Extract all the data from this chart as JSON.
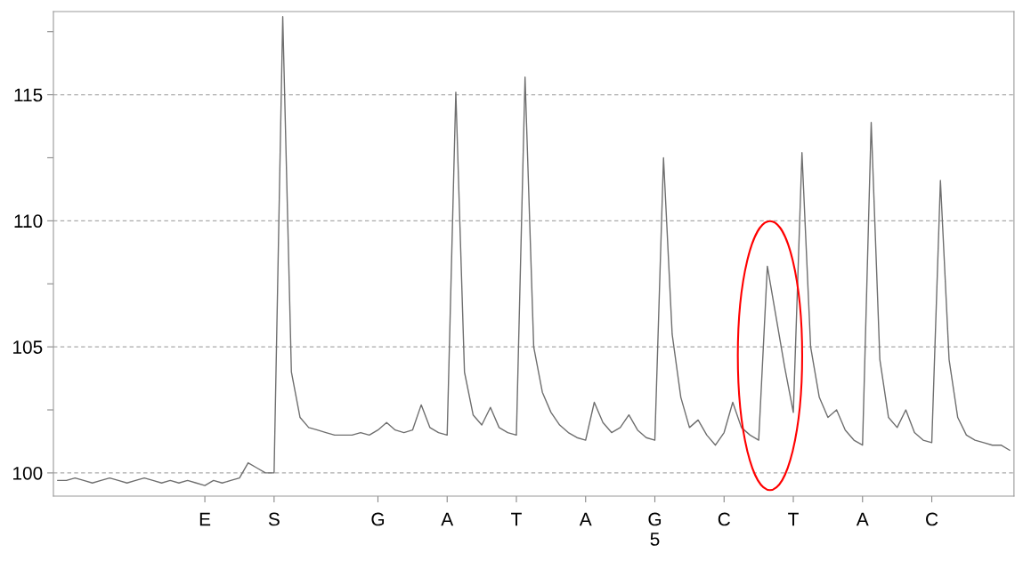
{
  "chart_data": {
    "type": "line",
    "categories": [
      null,
      null,
      null,
      null,
      null,
      null,
      null,
      null,
      null,
      null,
      null,
      null,
      null,
      null,
      null,
      null,
      null,
      "E",
      null,
      null,
      null,
      null,
      null,
      null,
      null,
      "S",
      null,
      null,
      null,
      null,
      null,
      null,
      null,
      null,
      null,
      null,
      null,
      "G",
      null,
      null,
      null,
      null,
      null,
      null,
      null,
      "A",
      null,
      null,
      null,
      null,
      null,
      null,
      null,
      "T",
      null,
      null,
      null,
      null,
      null,
      null,
      null,
      "A",
      null,
      null,
      null,
      null,
      null,
      null,
      null,
      "G\n5",
      null,
      null,
      null,
      null,
      null,
      null,
      null,
      "C",
      null,
      null,
      null,
      null,
      null,
      null,
      null,
      "T",
      null,
      null,
      null,
      null,
      null,
      null,
      null,
      "A",
      null,
      null,
      null,
      null,
      null,
      null,
      null,
      "C",
      null,
      null,
      null,
      null,
      null,
      null,
      null,
      null,
      null
    ],
    "series": [
      {
        "color": "#6e6e6e",
        "values": [
          99.7,
          99.7,
          99.8,
          99.7,
          99.6,
          99.7,
          99.8,
          99.7,
          99.6,
          99.7,
          99.8,
          99.7,
          99.6,
          99.7,
          99.6,
          99.7,
          99.6,
          99.5,
          99.7,
          99.6,
          99.7,
          99.8,
          100.4,
          100.2,
          100.0,
          100.0,
          118.1,
          104,
          102.2,
          101.8,
          101.7,
          101.6,
          101.5,
          101.5,
          101.5,
          101.6,
          101.5,
          101.7,
          102.0,
          101.7,
          101.6,
          101.7,
          102.7,
          101.8,
          101.6,
          101.5,
          115.1,
          104,
          102.3,
          101.9,
          102.6,
          101.8,
          101.6,
          101.5,
          115.7,
          105,
          103.2,
          102.4,
          101.9,
          101.6,
          101.4,
          101.3,
          102.8,
          102.0,
          101.6,
          101.8,
          102.3,
          101.7,
          101.4,
          101.3,
          112.5,
          105.5,
          103,
          101.8,
          102.1,
          101.5,
          101.1,
          101.6,
          102.8,
          101.8,
          101.5,
          101.3,
          108.2,
          106.2,
          104.2,
          102.4,
          112.7,
          105,
          103,
          102.2,
          102.5,
          101.7,
          101.3,
          101.1,
          113.9,
          104.5,
          102.2,
          101.8,
          102.5,
          101.6,
          101.3,
          101.2,
          111.6,
          104.5,
          102.2,
          101.5,
          101.3,
          101.2,
          101.1,
          101.1,
          100.9
        ]
      }
    ],
    "ylim": [
      99.08,
      118.3
    ],
    "yticks": [
      100,
      {
        "value": 102.5,
        "label": null
      },
      105,
      {
        "value": 107.5,
        "label": null
      },
      110,
      {
        "value": 112.5,
        "label": null
      },
      115,
      {
        "value": 117.5,
        "label": null
      }
    ],
    "grid": "y"
  }
}
